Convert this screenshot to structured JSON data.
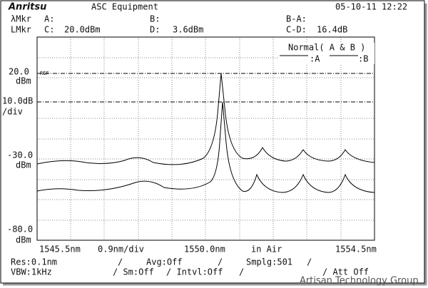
{
  "header": {
    "logo": "Anritsu",
    "title": "ASC Equipment",
    "datetime": "05-10-11 12:22"
  },
  "markers": {
    "row1": {
      "label": "λMkr",
      "a": "A:",
      "b": "B:",
      "ba": "B-A:"
    },
    "row2": {
      "label": "LMkr",
      "c": "C:",
      "c_value": "20.0dBm",
      "d": "D:",
      "d_value": "3.6dBm",
      "cd": "C-D:",
      "cd_value": "16.4dB"
    }
  },
  "y_labels": {
    "ref_value": "20.0",
    "ref_unit": "dBm",
    "ref_tag": "REF",
    "scale_value": "10.0dB",
    "scale_unit": "/div",
    "mid_value": "-30.0",
    "mid_unit": "dBm",
    "bottom_value": "-80.0",
    "bottom_unit": "dBm"
  },
  "legend": {
    "mode": "Normal( A & B )",
    "a": ":A",
    "b": ":B"
  },
  "x_labels": {
    "start": "1545.5nm",
    "span": "0.9nm/div",
    "center": "1550.0nm",
    "medium": "in Air",
    "stop": "1554.5nm"
  },
  "settings": {
    "row1": [
      "Res:0.1nm",
      "/",
      "Avg:Off",
      "/",
      "Smplg:501",
      "/"
    ],
    "row2": [
      "VBW:1kHz",
      "/ Sm:Off",
      "/ Intvl:Off",
      "/",
      "/ Att Off"
    ]
  },
  "watermark": "Artisan Technology Group"
}
